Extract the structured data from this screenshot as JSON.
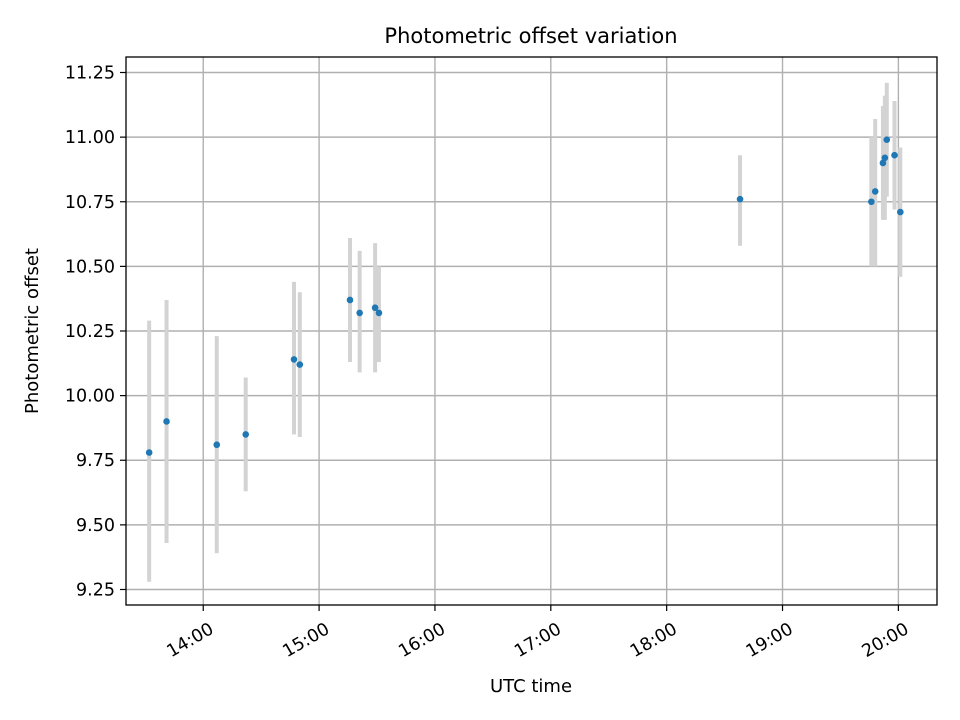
{
  "chart_data": {
    "type": "scatter",
    "title": "Photometric offset variation",
    "xlabel": "UTC time",
    "ylabel": "Photometric offset",
    "xlim": [
      "13:20",
      "20:20"
    ],
    "ylim": [
      9.19,
      11.31
    ],
    "xticks": [
      "14:00",
      "15:00",
      "16:00",
      "17:00",
      "18:00",
      "19:00",
      "20:00"
    ],
    "yticks": [
      "9.25",
      "9.50",
      "9.75",
      "10.00",
      "10.25",
      "10.50",
      "10.75",
      "11.00",
      "11.25"
    ],
    "grid": true,
    "marker_color": "#1f77b4",
    "errorbar_color": "#d3d3d3",
    "points": [
      {
        "t": "13:32",
        "y": 9.78,
        "ylo": 9.28,
        "yhi": 10.29
      },
      {
        "t": "13:41",
        "y": 9.9,
        "ylo": 9.43,
        "yhi": 10.37
      },
      {
        "t": "14:07",
        "y": 9.81,
        "ylo": 9.39,
        "yhi": 10.23
      },
      {
        "t": "14:22",
        "y": 9.85,
        "ylo": 9.63,
        "yhi": 10.07
      },
      {
        "t": "14:47",
        "y": 10.14,
        "ylo": 9.85,
        "yhi": 10.44
      },
      {
        "t": "14:50",
        "y": 10.12,
        "ylo": 9.84,
        "yhi": 10.4
      },
      {
        "t": "15:16",
        "y": 10.37,
        "ylo": 10.13,
        "yhi": 10.61
      },
      {
        "t": "15:21",
        "y": 10.32,
        "ylo": 10.09,
        "yhi": 10.56
      },
      {
        "t": "15:29",
        "y": 10.34,
        "ylo": 10.09,
        "yhi": 10.59
      },
      {
        "t": "15:31",
        "y": 10.32,
        "ylo": 10.13,
        "yhi": 10.5
      },
      {
        "t": "18:38",
        "y": 10.76,
        "ylo": 10.58,
        "yhi": 10.93
      },
      {
        "t": "19:46",
        "y": 10.75,
        "ylo": 10.5,
        "yhi": 11.0
      },
      {
        "t": "19:48",
        "y": 10.79,
        "ylo": 10.5,
        "yhi": 11.07
      },
      {
        "t": "19:52",
        "y": 10.9,
        "ylo": 10.68,
        "yhi": 11.12
      },
      {
        "t": "19:53",
        "y": 10.92,
        "ylo": 10.68,
        "yhi": 11.16
      },
      {
        "t": "19:54",
        "y": 10.99,
        "ylo": 10.77,
        "yhi": 11.21
      },
      {
        "t": "19:58",
        "y": 10.93,
        "ylo": 10.72,
        "yhi": 11.14
      },
      {
        "t": "20:01",
        "y": 10.71,
        "ylo": 10.46,
        "yhi": 10.96
      }
    ]
  }
}
